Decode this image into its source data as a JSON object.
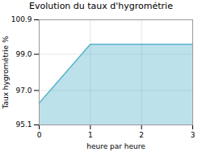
{
  "chart_data": {
    "type": "area",
    "title": "Evolution du taux d'hygrométrie",
    "xlabel": "heure par heure",
    "ylabel": "Taux hygrométrie %",
    "x": [
      0,
      1,
      3
    ],
    "values": [
      96.3,
      99.55,
      99.55
    ],
    "color": "#5ab4cc",
    "xlim": [
      0,
      3
    ],
    "ylim": [
      95.1,
      100.9
    ],
    "xticks": [
      0,
      1,
      2,
      3
    ],
    "yticks": [
      95.1,
      {
        "value": 97.0,
        "label": "97.0"
      },
      {
        "value": 99.0,
        "label": "99.0"
      },
      100.9
    ],
    "grid": true
  }
}
